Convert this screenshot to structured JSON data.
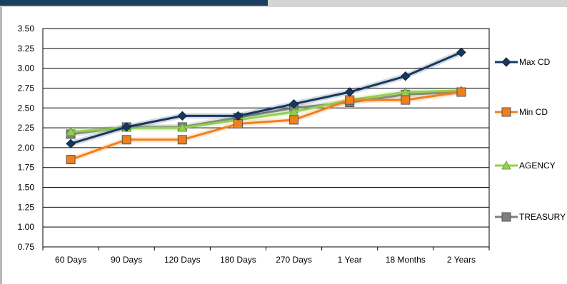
{
  "chart_data": {
    "type": "line",
    "categories": [
      "60 Days",
      "90 Days",
      "120 Days",
      "180 Days",
      "270 Days",
      "1 Year",
      "18 Months",
      "2 Years"
    ],
    "yticks": [
      "3.50",
      "3.25",
      "3.00",
      "2.75",
      "2.50",
      "2.25",
      "2.00",
      "1.75",
      "1.50",
      "1.25",
      "1.00",
      "0.75"
    ],
    "ylim": [
      0.75,
      3.5
    ],
    "grid": true,
    "legend_position": "right",
    "series": [
      {
        "name": "Max CD",
        "values": [
          2.05,
          2.26,
          2.4,
          2.4,
          2.55,
          2.7,
          2.9,
          3.2
        ],
        "color": "#17375e",
        "marker": "diamond"
      },
      {
        "name": "Min CD",
        "values": [
          1.85,
          2.1,
          2.1,
          2.3,
          2.35,
          2.6,
          2.6,
          2.7
        ],
        "color": "#f07f1e",
        "marker": "square"
      },
      {
        "name": "AGENCY",
        "values": [
          2.2,
          2.25,
          2.25,
          2.35,
          2.45,
          2.6,
          2.7,
          2.72
        ],
        "color": "#92d050",
        "marker": "triangle"
      },
      {
        "name": "TREASURY",
        "values": [
          2.17,
          2.26,
          2.26,
          2.38,
          2.5,
          2.57,
          2.67,
          2.7
        ],
        "color": "#7f7f7f",
        "marker": "square"
      }
    ]
  }
}
